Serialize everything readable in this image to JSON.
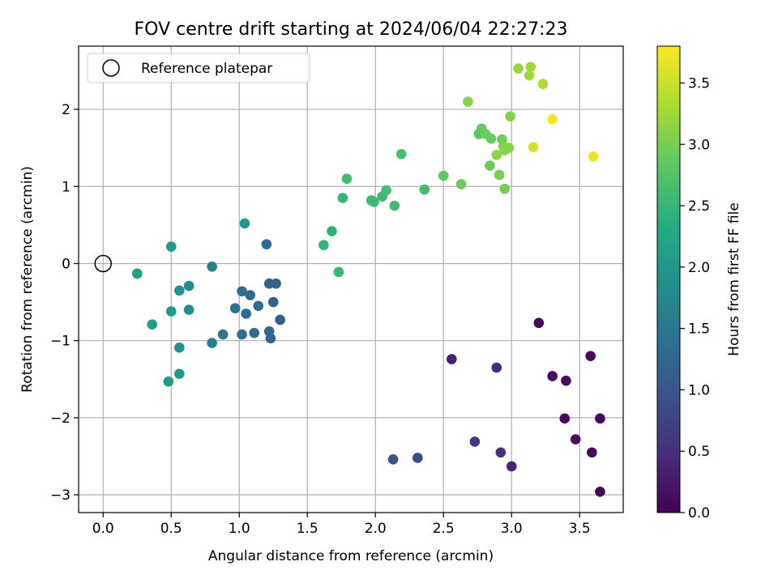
{
  "chart_data": {
    "type": "scatter",
    "title": "FOV centre drift starting at 2024/06/04 22:27:23",
    "xlabel": "Angular distance from reference (arcmin)",
    "ylabel": "Rotation from reference (arcmin)",
    "xlim": [
      -0.18,
      3.82
    ],
    "ylim": [
      -3.23,
      2.82
    ],
    "xticks": [
      0.0,
      0.5,
      1.0,
      1.5,
      2.0,
      2.5,
      3.0,
      3.5
    ],
    "xtick_labels": [
      "0.0",
      "0.5",
      "1.0",
      "1.5",
      "2.0",
      "2.5",
      "3.0",
      "3.5"
    ],
    "yticks": [
      -3,
      -2,
      -1,
      0,
      1,
      2
    ],
    "ytick_labels": [
      "−3",
      "−2",
      "−1",
      "0",
      "1",
      "2"
    ],
    "grid": true,
    "legend": {
      "label": "Reference platepar",
      "placement": "top-left"
    },
    "reference_point": {
      "x": 0,
      "y": 0
    },
    "colorbar": {
      "label": "Hours from first FF file",
      "colormap": "viridis",
      "range": [
        0,
        3.8
      ],
      "ticks": [
        0.0,
        0.5,
        1.0,
        1.5,
        2.0,
        2.5,
        3.0,
        3.5
      ],
      "tick_labels": [
        "0.0",
        "0.5",
        "1.0",
        "1.5",
        "2.0",
        "2.5",
        "3.0",
        "3.5"
      ]
    },
    "points": [
      {
        "x": 3.65,
        "y": -2.96,
        "hours": 0.05
      },
      {
        "x": 3.65,
        "y": -2.01,
        "hours": 0.08
      },
      {
        "x": 3.59,
        "y": -2.45,
        "hours": 0.12
      },
      {
        "x": 3.58,
        "y": -1.2,
        "hours": 0.1
      },
      {
        "x": 3.47,
        "y": -2.28,
        "hours": 0.15
      },
      {
        "x": 3.39,
        "y": -2.01,
        "hours": 0.1
      },
      {
        "x": 3.4,
        "y": -1.52,
        "hours": 0.12
      },
      {
        "x": 3.3,
        "y": -1.46,
        "hours": 0.15
      },
      {
        "x": 3.2,
        "y": -0.77,
        "hours": 0.05
      },
      {
        "x": 3.0,
        "y": -2.63,
        "hours": 0.4
      },
      {
        "x": 2.92,
        "y": -2.45,
        "hours": 0.55
      },
      {
        "x": 2.89,
        "y": -1.35,
        "hours": 0.45
      },
      {
        "x": 2.73,
        "y": -2.31,
        "hours": 0.6
      },
      {
        "x": 2.56,
        "y": -1.24,
        "hours": 0.3
      },
      {
        "x": 2.31,
        "y": -2.52,
        "hours": 0.9
      },
      {
        "x": 2.13,
        "y": -2.54,
        "hours": 0.95
      },
      {
        "x": 1.3,
        "y": -0.73,
        "hours": 1.1
      },
      {
        "x": 1.27,
        "y": -0.26,
        "hours": 1.15
      },
      {
        "x": 1.25,
        "y": -0.5,
        "hours": 1.2
      },
      {
        "x": 1.23,
        "y": -0.97,
        "hours": 1.2
      },
      {
        "x": 1.22,
        "y": -0.88,
        "hours": 1.25
      },
      {
        "x": 1.22,
        "y": -0.26,
        "hours": 1.2
      },
      {
        "x": 1.2,
        "y": 0.25,
        "hours": 1.35
      },
      {
        "x": 1.14,
        "y": -0.55,
        "hours": 1.25
      },
      {
        "x": 1.11,
        "y": -0.9,
        "hours": 1.3
      },
      {
        "x": 1.08,
        "y": -0.41,
        "hours": 1.3
      },
      {
        "x": 1.05,
        "y": -0.65,
        "hours": 1.3
      },
      {
        "x": 1.02,
        "y": -0.36,
        "hours": 1.3
      },
      {
        "x": 1.02,
        "y": -0.92,
        "hours": 1.4
      },
      {
        "x": 0.97,
        "y": -0.58,
        "hours": 1.45
      },
      {
        "x": 0.88,
        "y": -0.92,
        "hours": 1.5
      },
      {
        "x": 0.8,
        "y": -1.03,
        "hours": 1.6
      },
      {
        "x": 0.8,
        "y": -0.04,
        "hours": 1.6
      },
      {
        "x": 1.04,
        "y": 0.52,
        "hours": 2.05
      },
      {
        "x": 0.63,
        "y": -0.29,
        "hours": 1.85
      },
      {
        "x": 0.63,
        "y": -0.6,
        "hours": 1.85
      },
      {
        "x": 0.56,
        "y": -0.35,
        "hours": 1.9
      },
      {
        "x": 0.56,
        "y": -1.09,
        "hours": 1.95
      },
      {
        "x": 0.56,
        "y": -1.43,
        "hours": 2.05
      },
      {
        "x": 0.5,
        "y": 0.22,
        "hours": 2.05
      },
      {
        "x": 0.5,
        "y": -0.62,
        "hours": 2.1
      },
      {
        "x": 0.48,
        "y": -1.53,
        "hours": 2.1
      },
      {
        "x": 0.36,
        "y": -0.79,
        "hours": 2.15
      },
      {
        "x": 0.25,
        "y": -0.13,
        "hours": 2.15
      },
      {
        "x": 1.62,
        "y": 0.24,
        "hours": 2.5
      },
      {
        "x": 1.68,
        "y": 0.42,
        "hours": 2.45
      },
      {
        "x": 1.73,
        "y": -0.11,
        "hours": 2.55
      },
      {
        "x": 1.76,
        "y": 0.85,
        "hours": 2.55
      },
      {
        "x": 1.79,
        "y": 1.1,
        "hours": 2.65
      },
      {
        "x": 1.97,
        "y": 0.82,
        "hours": 2.6
      },
      {
        "x": 1.99,
        "y": 0.8,
        "hours": 2.6
      },
      {
        "x": 2.05,
        "y": 0.87,
        "hours": 2.6
      },
      {
        "x": 2.08,
        "y": 0.95,
        "hours": 2.65
      },
      {
        "x": 2.14,
        "y": 0.75,
        "hours": 2.6
      },
      {
        "x": 2.19,
        "y": 1.42,
        "hours": 2.7
      },
      {
        "x": 2.36,
        "y": 0.96,
        "hours": 2.65
      },
      {
        "x": 2.5,
        "y": 1.14,
        "hours": 2.85
      },
      {
        "x": 2.63,
        "y": 1.03,
        "hours": 2.95
      },
      {
        "x": 2.68,
        "y": 2.1,
        "hours": 3.1
      },
      {
        "x": 2.76,
        "y": 1.68,
        "hours": 2.8
      },
      {
        "x": 2.78,
        "y": 1.75,
        "hours": 2.85
      },
      {
        "x": 2.81,
        "y": 1.68,
        "hours": 2.95
      },
      {
        "x": 2.84,
        "y": 1.27,
        "hours": 2.95
      },
      {
        "x": 2.85,
        "y": 1.62,
        "hours": 2.9
      },
      {
        "x": 2.89,
        "y": 1.41,
        "hours": 3.15
      },
      {
        "x": 2.91,
        "y": 1.15,
        "hours": 3.0
      },
      {
        "x": 2.93,
        "y": 1.61,
        "hours": 2.95
      },
      {
        "x": 2.94,
        "y": 1.52,
        "hours": 3.05
      },
      {
        "x": 2.95,
        "y": 1.47,
        "hours": 3.1
      },
      {
        "x": 2.95,
        "y": 0.97,
        "hours": 3.0
      },
      {
        "x": 2.98,
        "y": 1.5,
        "hours": 3.1
      },
      {
        "x": 2.99,
        "y": 1.91,
        "hours": 3.1
      },
      {
        "x": 3.05,
        "y": 2.53,
        "hours": 3.2
      },
      {
        "x": 3.13,
        "y": 2.44,
        "hours": 3.25
      },
      {
        "x": 3.14,
        "y": 2.55,
        "hours": 3.25
      },
      {
        "x": 3.16,
        "y": 1.51,
        "hours": 3.55
      },
      {
        "x": 3.23,
        "y": 2.33,
        "hours": 3.35
      },
      {
        "x": 3.3,
        "y": 1.87,
        "hours": 3.75
      },
      {
        "x": 3.6,
        "y": 1.39,
        "hours": 3.7
      }
    ]
  }
}
